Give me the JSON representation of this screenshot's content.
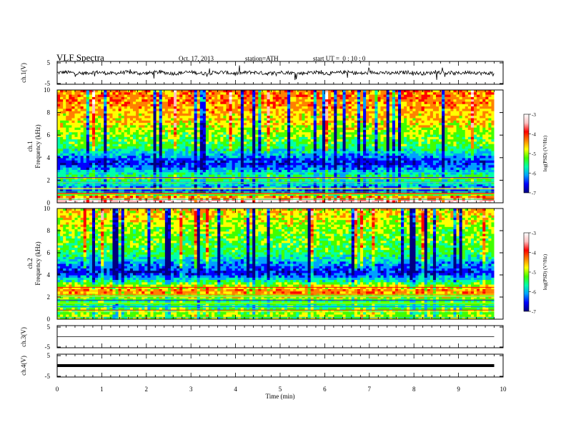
{
  "header": {
    "title": "VLF Spectra",
    "date": "Oct. 17, 2013",
    "station": "station=ATH",
    "start": "start UT =  0 : 10 : 0"
  },
  "colorbar": {
    "label": "log(PSD) (V²/Hz)",
    "ticks": [
      "-3",
      "-4",
      "-5",
      "-6",
      "-7"
    ],
    "colors": [
      "#000080",
      "#0000ff",
      "#00a0ff",
      "#00ffaa",
      "#40ff00",
      "#ffff00",
      "#ff8000",
      "#ff0000",
      "#ffc0c0",
      "#ffffff"
    ]
  },
  "chart_data": [
    {
      "type": "line",
      "ylabel": "ch.1(V)",
      "xlim": [
        0,
        10
      ],
      "ylim": [
        -5,
        5
      ],
      "yticks": [
        "5",
        "-5"
      ],
      "description_values": "noisy waveform centred near 0 V, amplitude about ±1.5 V, from 0 to ~9.8 min"
    },
    {
      "type": "heatmap",
      "ylabel": "ch.1\nFrequency (kHz)",
      "xlim": [
        0,
        10
      ],
      "ylim": [
        0,
        10
      ],
      "yticks": [
        "0",
        "2",
        "4",
        "6",
        "8",
        "10"
      ],
      "colorbar_label": "log(PSD) (V²/Hz)",
      "colorbar_ticks": [
        -3,
        -4,
        -5,
        -6,
        -7
      ],
      "profile": [
        {
          "f_khz": 0.25,
          "log_psd": -3.2
        },
        {
          "f_khz": 1,
          "log_psd": -6.5
        },
        {
          "f_khz": 2.2,
          "log_psd": -5.3
        },
        {
          "f_khz": 3.5,
          "log_psd": -6.6
        },
        {
          "f_khz": 5,
          "log_psd": -5.4
        },
        {
          "f_khz": 7,
          "log_psd": -4.8
        },
        {
          "f_khz": 9,
          "log_psd": -4.3
        }
      ]
    },
    {
      "type": "heatmap",
      "ylabel": "ch.2\nFrequency (kHz)",
      "xlim": [
        0,
        10
      ],
      "ylim": [
        0,
        10
      ],
      "yticks": [
        "0",
        "2",
        "4",
        "6",
        "8",
        "10"
      ],
      "colorbar_label": "log(PSD) (V²/Hz)",
      "colorbar_ticks": [
        -3,
        -4,
        -5,
        -6,
        -7
      ],
      "profile": [
        {
          "f_khz": 0.25,
          "log_psd": -5.0
        },
        {
          "f_khz": 1.5,
          "log_psd": -5.5
        },
        {
          "f_khz": 2.5,
          "log_psd": -4.2
        },
        {
          "f_khz": 4.2,
          "log_psd": -6.7
        },
        {
          "f_khz": 6,
          "log_psd": -5.4
        },
        {
          "f_khz": 8,
          "log_psd": -5.1
        },
        {
          "f_khz": 9.5,
          "log_psd": -4.7
        }
      ]
    },
    {
      "type": "line",
      "ylabel": "ch.3(V)",
      "xlim": [
        0,
        10
      ],
      "ylim": [
        -5,
        5
      ],
      "yticks": [
        "5",
        "-5"
      ],
      "description_values": "flat trace near 0 V"
    },
    {
      "type": "line",
      "ylabel": "ch.4(V)",
      "xlim": [
        0,
        10
      ],
      "ylim": [
        -5,
        5
      ],
      "yticks": [
        "5",
        "-5"
      ],
      "description_values": "thick flat trace near 0 V"
    }
  ],
  "xaxis": {
    "label": "Time (min)",
    "ticks": [
      "0",
      "1",
      "2",
      "3",
      "4",
      "5",
      "6",
      "7",
      "8",
      "9",
      "10"
    ]
  }
}
